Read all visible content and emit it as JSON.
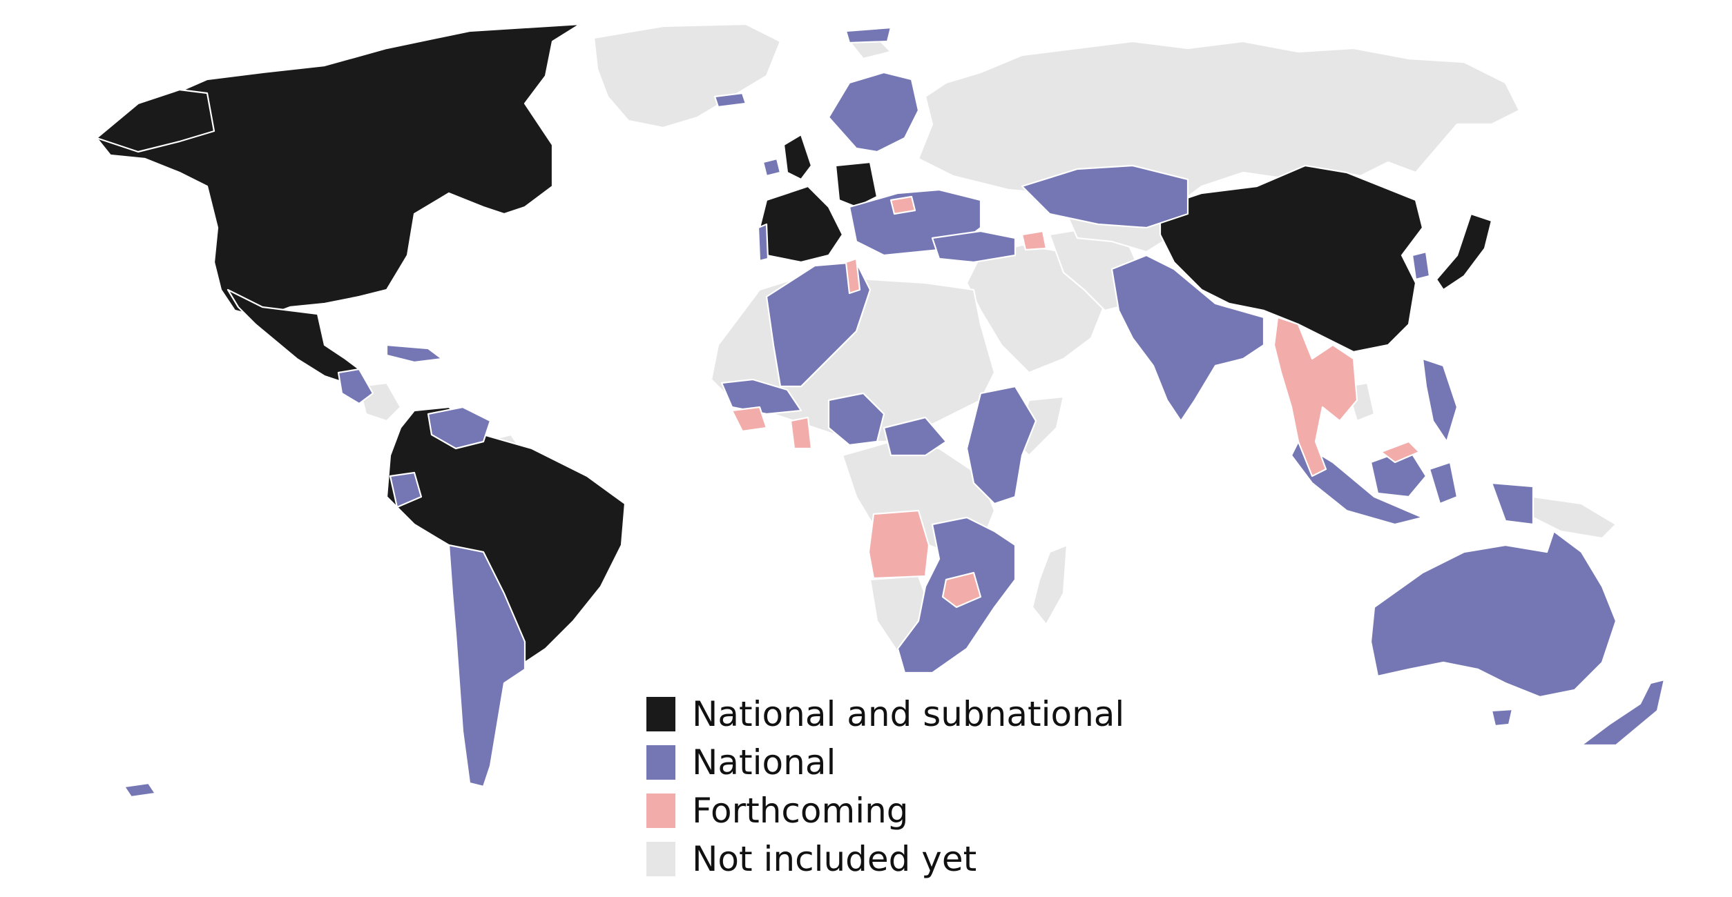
{
  "colors": {
    "national_and_subnational": "#1a1a1a",
    "national": "#7577b5",
    "forthcoming": "#f2acaa",
    "not_included": "#e6e6e6"
  },
  "legend": {
    "items": [
      {
        "key": "national_and_subnational",
        "label": "National and subnational"
      },
      {
        "key": "national",
        "label": "National"
      },
      {
        "key": "forthcoming",
        "label": "Forthcoming"
      },
      {
        "key": "not_included",
        "label": "Not included yet"
      }
    ]
  }
}
